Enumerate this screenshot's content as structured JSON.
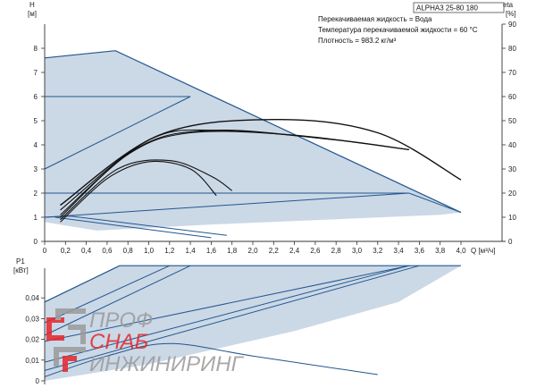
{
  "header": {
    "model": "ALPHA3 25-80 180",
    "info_lines": [
      "Перекачиваемая жидкость = Вода",
      "Температура перекачиваемой жидкости = 60 °C",
      "Плотность = 983.2 кг/м³"
    ]
  },
  "watermark": {
    "line1": "ПРОФ",
    "line2": "СНАБ",
    "line3": "ИНЖИНИРИНГ",
    "colors": {
      "red": "#e6262b",
      "grey": "#8a8a8a"
    }
  },
  "colors": {
    "area_fill": "#cbd8e6",
    "envelope": "#23568f",
    "curve": "#111111",
    "axis": "#333333"
  },
  "chart_data": [
    {
      "type": "line",
      "name": "head-chart",
      "ylabel_top": "H",
      "ylabel_unit": "[м]",
      "y2label_top": "eta",
      "y2label_unit": "[%]",
      "xlabel": "Q [м³/ч]",
      "xlim": [
        0,
        4.4
      ],
      "ylim": [
        0,
        9
      ],
      "y2lim": [
        0,
        90
      ],
      "xticks": [
        "0",
        "0,2",
        "0,4",
        "0,6",
        "0,8",
        "1,0",
        "1,2",
        "1,4",
        "1,6",
        "1,8",
        "2,0",
        "2,2",
        "2,4",
        "2,6",
        "2,8",
        "3,0",
        "3,2",
        "3,4",
        "3,6",
        "3,8",
        "4,0"
      ],
      "yticks": [
        "0",
        "1",
        "2",
        "3",
        "4",
        "5",
        "6",
        "7",
        "8"
      ],
      "y2ticks": [
        "0",
        "10",
        "20",
        "30",
        "40",
        "50",
        "60",
        "70",
        "80",
        "90"
      ],
      "envelope": [
        [
          0,
          7.6
        ],
        [
          0.68,
          7.9
        ],
        [
          4.0,
          1.2
        ],
        [
          3.8,
          1.1
        ],
        [
          1.6,
          0.7
        ],
        [
          0.5,
          0.45
        ],
        [
          0,
          0.8
        ]
      ],
      "lines": [
        [
          [
            0,
            7.6
          ],
          [
            0.68,
            7.9
          ],
          [
            4.0,
            1.2
          ]
        ],
        [
          [
            0,
            6.0
          ],
          [
            1.4,
            6.0
          ]
        ],
        [
          [
            0,
            3.0
          ],
          [
            1.4,
            6.0
          ]
        ],
        [
          [
            0,
            2.0
          ],
          [
            3.5,
            2.0
          ]
        ],
        [
          [
            0,
            1.0
          ],
          [
            3.5,
            2.0
          ]
        ],
        [
          [
            0,
            1.0
          ],
          [
            0.25,
            1.05
          ],
          [
            1.75,
            0.25
          ]
        ],
        [
          [
            3.5,
            2.0
          ],
          [
            4.0,
            1.2
          ]
        ],
        [
          [
            0.1,
            1.0
          ],
          [
            1.6,
            0.15
          ]
        ]
      ],
      "eta_curves": [
        [
          [
            0.15,
            0.8
          ],
          [
            0.6,
            2.6
          ],
          [
            1.0,
            3.3
          ],
          [
            1.4,
            3.0
          ],
          [
            1.65,
            1.9
          ]
        ],
        [
          [
            0.15,
            0.9
          ],
          [
            0.7,
            3.0
          ],
          [
            1.2,
            3.35
          ],
          [
            1.6,
            2.7
          ],
          [
            1.8,
            2.1
          ]
        ],
        [
          [
            0.15,
            1.0
          ],
          [
            0.8,
            3.6
          ],
          [
            1.4,
            4.5
          ],
          [
            2.4,
            4.4
          ],
          [
            3.5,
            3.8
          ]
        ],
        [
          [
            0.15,
            1.1
          ],
          [
            0.9,
            3.9
          ],
          [
            1.6,
            4.6
          ],
          [
            2.6,
            4.3
          ],
          [
            3.5,
            3.8
          ]
        ],
        [
          [
            0.15,
            1.3
          ],
          [
            1.0,
            4.2
          ],
          [
            1.7,
            4.6
          ],
          [
            2.8,
            4.2
          ],
          [
            3.5,
            3.8
          ]
        ],
        [
          [
            0.15,
            1.5
          ],
          [
            1.1,
            4.4
          ],
          [
            2.2,
            5.05
          ],
          [
            3.2,
            4.5
          ],
          [
            4.0,
            2.55
          ]
        ]
      ]
    },
    {
      "type": "line",
      "name": "power-chart",
      "ylabel_top": "P1",
      "ylabel_unit": "[кВт]",
      "xlim": [
        0,
        4.4
      ],
      "ylim": [
        0,
        0.055
      ],
      "yticks": [
        "0",
        "0,01",
        "0,02",
        "0,03",
        "0,04"
      ],
      "envelope": [
        [
          0,
          0.038
        ],
        [
          0.72,
          0.0555
        ],
        [
          4.0,
          0.0555
        ],
        [
          3.4,
          0.038
        ],
        [
          2.4,
          0.024
        ],
        [
          1.0,
          0.008
        ],
        [
          0,
          0.0
        ]
      ],
      "lines": [
        [
          [
            0,
            0.038
          ],
          [
            0.72,
            0.0555
          ],
          [
            4.0,
            0.0555
          ]
        ],
        [
          [
            0,
            0.028
          ],
          [
            1.2,
            0.0555
          ]
        ],
        [
          [
            0,
            0.022
          ],
          [
            1.4,
            0.0555
          ]
        ],
        [
          [
            0,
            0.019
          ],
          [
            3.5,
            0.0555
          ]
        ],
        [
          [
            0,
            0.009
          ],
          [
            3.5,
            0.0555
          ]
        ],
        [
          [
            0,
            0.005
          ],
          [
            3.6,
            0.0555
          ]
        ],
        [
          [
            0,
            0.002
          ],
          [
            0.6,
            0.012
          ],
          [
            1.2,
            0.018
          ],
          [
            2.0,
            0.012
          ],
          [
            3.2,
            0.003
          ]
        ]
      ]
    }
  ]
}
